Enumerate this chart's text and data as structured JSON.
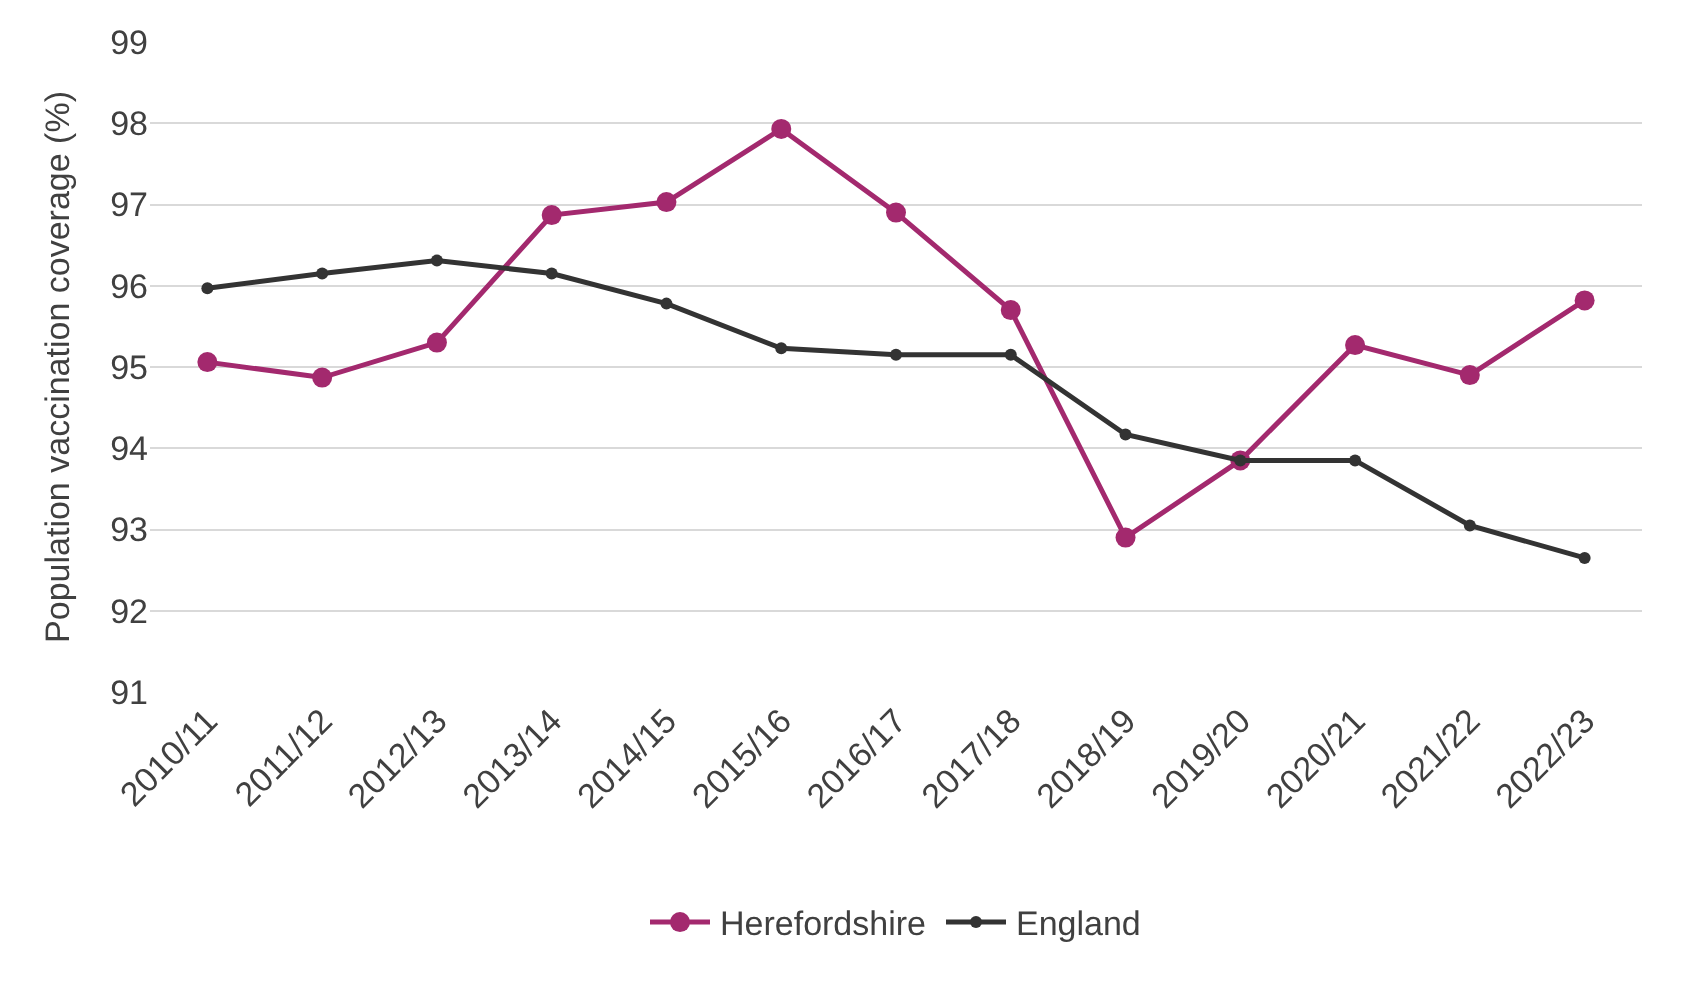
{
  "chart_data": {
    "type": "line",
    "ylabel": "Population vaccination coverage (%)",
    "categories": [
      "2010/11",
      "2011/12",
      "2012/13",
      "2013/14",
      "2014/15",
      "2015/16",
      "2016/17",
      "2017/18",
      "2018/19",
      "2019/20",
      "2020/21",
      "2021/22",
      "2022/23"
    ],
    "series": [
      {
        "name": "Herefordshire",
        "color": "#a3296e",
        "values": [
          95.06,
          94.87,
          95.3,
          96.87,
          97.03,
          97.93,
          96.9,
          95.7,
          92.9,
          93.85,
          95.27,
          94.9,
          95.82
        ]
      },
      {
        "name": "England",
        "color": "#333333",
        "values": [
          95.97,
          96.15,
          96.31,
          96.15,
          95.78,
          95.23,
          95.15,
          95.15,
          94.17,
          93.85,
          93.85,
          93.05,
          92.65
        ]
      }
    ],
    "ylim": [
      91,
      99
    ],
    "yticks": [
      91,
      92,
      93,
      94,
      95,
      96,
      97,
      98,
      99
    ],
    "grid": "y",
    "legend": "bottom",
    "marker": "circle",
    "line_style": "solid"
  }
}
